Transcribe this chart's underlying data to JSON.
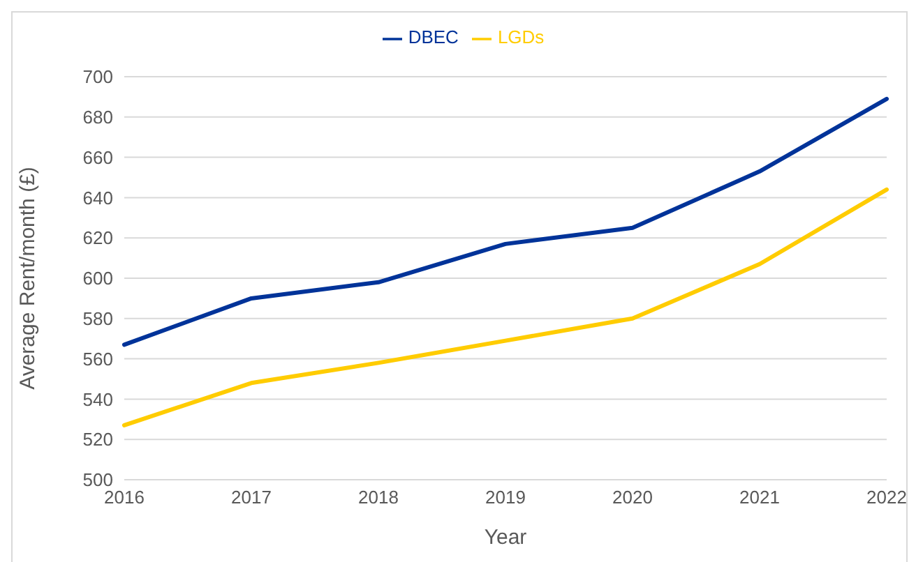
{
  "chart_data": {
    "type": "line",
    "xlabel": "Year",
    "ylabel": "Average Rent/month (£)",
    "categories": [
      "2016",
      "2017",
      "2018",
      "2019",
      "2020",
      "2021",
      "2022"
    ],
    "series": [
      {
        "name": "DBEC",
        "color": "#003399",
        "values": [
          567,
          590,
          598,
          617,
          625,
          653,
          689
        ]
      },
      {
        "name": "LGDs",
        "color": "#ffcc00",
        "values": [
          527,
          548,
          558,
          569,
          580,
          607,
          644
        ]
      }
    ],
    "ylim": [
      500,
      700
    ],
    "yticks": [
      500,
      520,
      540,
      560,
      580,
      600,
      620,
      640,
      660,
      680,
      700
    ],
    "grid": "y",
    "legend": "top",
    "marker": "none",
    "line_style": "solid"
  }
}
